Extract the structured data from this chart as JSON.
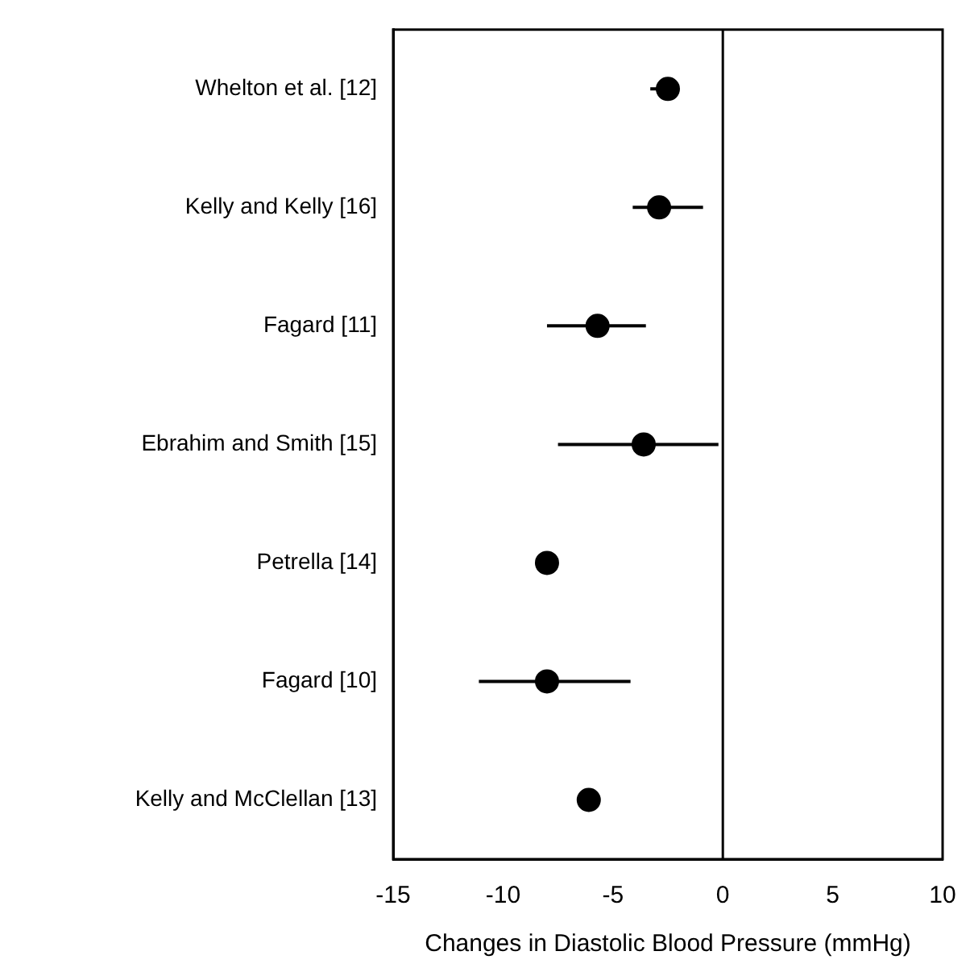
{
  "chart_data": {
    "type": "scatter",
    "orientation": "horizontal",
    "xlabel": "Changes in Diastolic Blood Pressure (mmHg)",
    "categories": [
      "Whelton et al. [12]",
      "Kelly and Kelly [16]",
      "Fagard [11]",
      "Ebrahim and Smith [15]",
      "Petrella [14]",
      "Fagard [10]",
      "Kelly and McClellan [13]"
    ],
    "values": [
      -2.5,
      -2.9,
      -5.7,
      -3.6,
      -8.0,
      -8.0,
      -6.1
    ],
    "errors": [
      [
        -3.3,
        -2.0
      ],
      [
        -4.1,
        -0.9
      ],
      [
        -8.0,
        -3.5
      ],
      [
        -7.5,
        -0.2
      ],
      null,
      [
        -11.1,
        -4.2
      ],
      null
    ],
    "color": "#000000",
    "marker": "circle",
    "xlim": [
      -15,
      10
    ],
    "xticks": [
      -15,
      -10,
      -5,
      0,
      5,
      10
    ],
    "ref_lines": [
      {
        "axis": "x",
        "value": 0,
        "color": "#000000"
      }
    ],
    "grid": false,
    "legend": false
  }
}
